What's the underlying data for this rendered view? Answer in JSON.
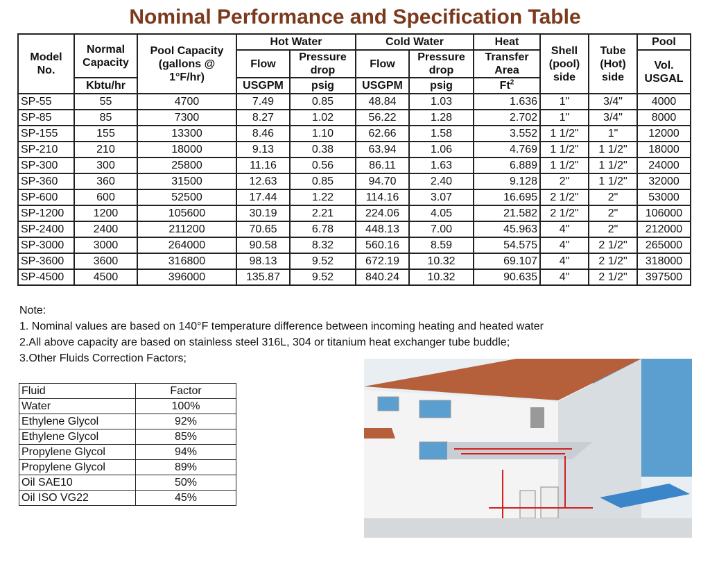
{
  "title": "Nominal Performance and Specification Table",
  "spec_table": {
    "headers": {
      "model": "Model No.",
      "normal_capacity": "Normal Capacity",
      "normal_unit": "Kbtu/hr",
      "pool_capacity": "Pool Capacity (gallons @ 1°F/hr)",
      "hot_water": "Hot Water",
      "cold_water": "Cold Water",
      "flow": "Flow",
      "pressure_drop": "Pressure drop",
      "usgpm": "USGPM",
      "psig": "psig",
      "heat": "Heat",
      "transfer_area": "Transfer Area",
      "ft": "Ft",
      "ft_sup": "2",
      "shell": "Shell (pool) side",
      "tube": "Tube (Hot) side",
      "pool": "Pool",
      "pool_vol": "Vol. USGAL"
    },
    "rows": [
      [
        "SP-55",
        "55",
        "4700",
        "7.49",
        "0.85",
        "48.84",
        "1.03",
        "1.636",
        "1\"",
        "3/4\"",
        "4000"
      ],
      [
        "SP-85",
        "85",
        "7300",
        "8.27",
        "1.02",
        "56.22",
        "1.28",
        "2.702",
        "1\"",
        "3/4\"",
        "8000"
      ],
      [
        "SP-155",
        "155",
        "13300",
        "8.46",
        "1.10",
        "62.66",
        "1.58",
        "3.552",
        "1 1/2\"",
        "1\"",
        "12000"
      ],
      [
        "SP-210",
        "210",
        "18000",
        "9.13",
        "0.38",
        "63.94",
        "1.06",
        "4.769",
        "1 1/2\"",
        "1 1/2\"",
        "18000"
      ],
      [
        "SP-300",
        "300",
        "25800",
        "11.16",
        "0.56",
        "86.11",
        "1.63",
        "6.889",
        "1 1/2\"",
        "1 1/2\"",
        "24000"
      ],
      [
        "SP-360",
        "360",
        "31500",
        "12.63",
        "0.85",
        "94.70",
        "2.40",
        "9.128",
        "2\"",
        "1 1/2\"",
        "32000"
      ],
      [
        "SP-600",
        "600",
        "52500",
        "17.44",
        "1.22",
        "114.16",
        "3.07",
        "16.695",
        "2 1/2\"",
        "2\"",
        "53000"
      ],
      [
        "SP-1200",
        "1200",
        "105600",
        "30.19",
        "2.21",
        "224.06",
        "4.05",
        "21.582",
        "2 1/2\"",
        "2\"",
        "106000"
      ],
      [
        "SP-2400",
        "2400",
        "211200",
        "70.65",
        "6.78",
        "448.13",
        "7.00",
        "45.963",
        "4\"",
        "2\"",
        "212000"
      ],
      [
        "SP-3000",
        "3000",
        "264000",
        "90.58",
        "8.32",
        "560.16",
        "8.59",
        "54.575",
        "4\"",
        "2 1/2\"",
        "265000"
      ],
      [
        "SP-3600",
        "3600",
        "316800",
        "98.13",
        "9.52",
        "672.19",
        "10.32",
        "69.107",
        "4\"",
        "2 1/2\"",
        "318000"
      ],
      [
        "SP-4500",
        "4500",
        "396000",
        "135.87",
        "9.52",
        "840.24",
        "10.32",
        "90.635",
        "4\"",
        "2 1/2\"",
        "397500"
      ]
    ]
  },
  "notes": {
    "heading": "Note:",
    "items": [
      "1. Nominal values are based on 140°F temperature difference between incoming heating and heated water",
      "2.All above capacity are based on stainless steel 316L, 304 or titanium heat exchanger tube buddle;",
      "3.Other Fluids Correction Factors;"
    ]
  },
  "fluid_table": {
    "headers": [
      "Fluid",
      "Factor"
    ],
    "rows": [
      [
        "Water",
        "100%"
      ],
      [
        "Ethylene Glycol",
        "92%"
      ],
      [
        "Ethylene Glycol",
        "85%"
      ],
      [
        "Propylene Glycol",
        "94%"
      ],
      [
        "Propylene Glycol",
        "89%"
      ],
      [
        "Oil SAE10",
        "50%"
      ],
      [
        "Oil ISO VG22",
        "45%"
      ]
    ]
  },
  "colors": {
    "title": "#7b3a1e",
    "roof": "#b5603a",
    "sky": "#5a9fd0",
    "pipe": "#d02020"
  }
}
